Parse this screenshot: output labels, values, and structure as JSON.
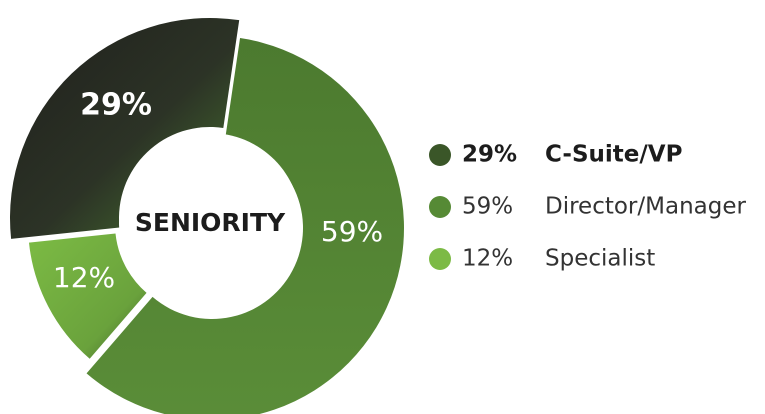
{
  "chart_data": {
    "type": "pie",
    "title": "SENIORITY",
    "categories": [
      "C-Suite/VP",
      "Director/Manager",
      "Specialist"
    ],
    "values": [
      29,
      59,
      12
    ],
    "value_labels": [
      "29%",
      "59%",
      "12%"
    ],
    "colors": [
      "#3a5628",
      "#568a35",
      "#7cba45"
    ]
  }
}
